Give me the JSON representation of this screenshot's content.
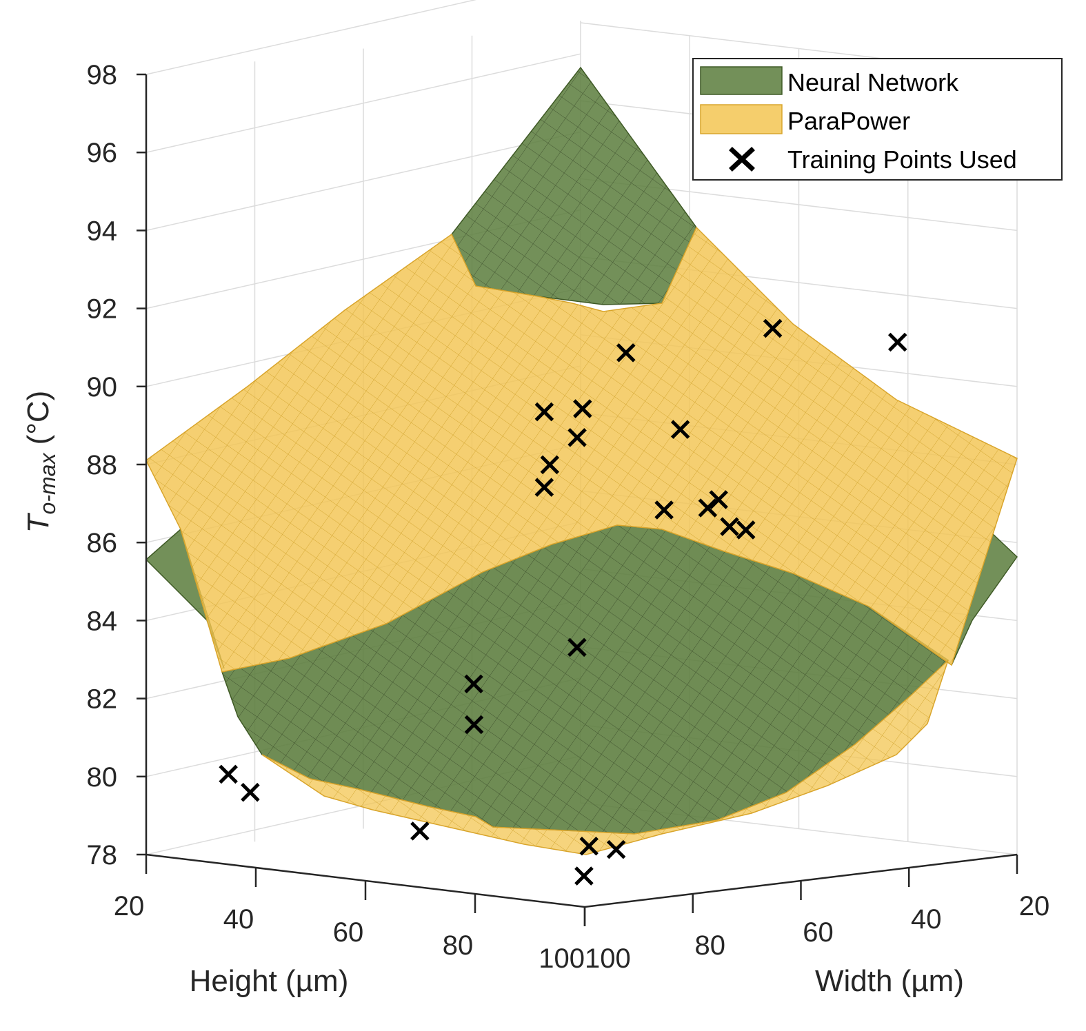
{
  "chart_data": {
    "type": "surface3d",
    "zlabel_main": "T",
    "zlabel_sub": "o-max",
    "zlabel_unit": " (°C)",
    "xlabel": "Height (µm)",
    "ylabel": "Width (µm)",
    "z_ticks": [
      "78",
      "80",
      "82",
      "84",
      "86",
      "88",
      "90",
      "92",
      "94",
      "96",
      "98"
    ],
    "zlim": [
      78,
      98
    ],
    "x_ticks": [
      "20",
      "40",
      "60",
      "80",
      "100"
    ],
    "y_ticks": [
      "20",
      "40",
      "60",
      "80",
      "100"
    ],
    "xlim": [
      20,
      100
    ],
    "ylim": [
      20,
      100
    ],
    "grid": true,
    "legend_position": "top-right",
    "legend": [
      {
        "label": "Neural Network",
        "kind": "patch",
        "color": "#5a7a3a"
      },
      {
        "label": "ParaPower",
        "kind": "patch",
        "color": "#f2c14e"
      },
      {
        "label": "Training Points Used",
        "kind": "marker",
        "color": "#000000"
      }
    ],
    "series": [
      {
        "name": "Neural Network",
        "corners": {
          "peak_98": [
            20,
            20
          ],
          "left_85": [
            20,
            100
          ],
          "right_85": [
            100,
            20
          ],
          "bottom_78": [
            100,
            100
          ]
        }
      },
      {
        "name": "ParaPower",
        "corners": {
          "peak_95": [
            20,
            20
          ],
          "left_88": [
            20,
            100
          ],
          "right_88": [
            100,
            20
          ],
          "bottom_78": [
            100,
            100
          ]
        }
      }
    ],
    "training_points_approx": [
      {
        "height": 57,
        "width": 22,
        "T": 92.2
      },
      {
        "height": 35,
        "width": 42,
        "T": 90.2
      },
      {
        "height": 56,
        "width": 38,
        "T": 89.6
      },
      {
        "height": 39,
        "width": 46,
        "T": 88.2
      },
      {
        "height": 28,
        "width": 34,
        "T": 89.0
      },
      {
        "height": 38,
        "width": 30,
        "T": 91.8
      },
      {
        "height": 78,
        "width": 20,
        "T": 91.5
      },
      {
        "height": 60,
        "width": 45,
        "T": 87.5
      },
      {
        "height": 70,
        "width": 47,
        "T": 87.5
      },
      {
        "height": 72,
        "width": 47,
        "T": 87.7
      },
      {
        "height": 75,
        "width": 48,
        "T": 87.0
      },
      {
        "height": 78,
        "width": 48,
        "T": 86.9
      },
      {
        "height": 25,
        "width": 25,
        "T": 90.6
      },
      {
        "height": 20,
        "width": 21,
        "T": 90.0
      },
      {
        "height": 52,
        "width": 53,
        "T": 84.0
      },
      {
        "height": 33,
        "width": 98,
        "T": 80.3
      },
      {
        "height": 37,
        "width": 98,
        "T": 79.9
      },
      {
        "height": 62,
        "width": 92,
        "T": 79.3
      },
      {
        "height": 85,
        "width": 79,
        "T": 79.0
      },
      {
        "height": 83,
        "width": 82,
        "T": 79.1
      },
      {
        "height": 90,
        "width": 90,
        "T": 78.5
      },
      {
        "height": 60,
        "width": 80,
        "T": 82.0
      },
      {
        "height": 50,
        "width": 70,
        "T": 83.0
      }
    ]
  }
}
